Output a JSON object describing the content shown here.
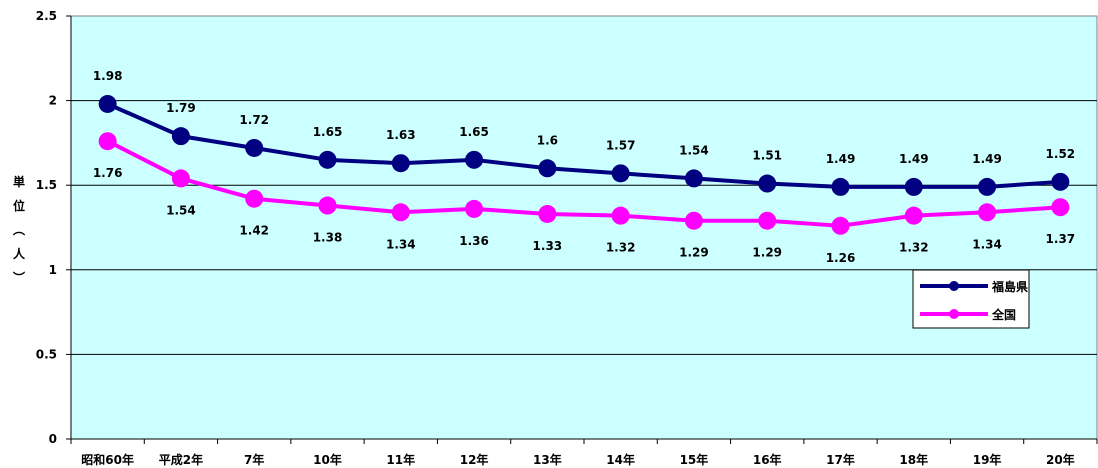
{
  "chart_data": {
    "type": "line",
    "title": "",
    "xlabel": "",
    "ylabel": [
      "単",
      "位",
      "︵",
      "人",
      "︶"
    ],
    "ylim": [
      0,
      2.5
    ],
    "yticks": [
      "0",
      "0.5",
      "1",
      "1.5",
      "2",
      "2.5"
    ],
    "categories": [
      "昭和60年",
      "平成2年",
      "7年",
      "10年",
      "11年",
      "12年",
      "13年",
      "14年",
      "15年",
      "16年",
      "17年",
      "18年",
      "19年",
      "20年"
    ],
    "series": [
      {
        "name": "福島県",
        "color": "#000080",
        "values": [
          1.98,
          1.79,
          1.72,
          1.65,
          1.63,
          1.65,
          1.6,
          1.57,
          1.54,
          1.51,
          1.49,
          1.49,
          1.49,
          1.52
        ],
        "labels": [
          "1.98",
          "1.79",
          "1.72",
          "1.65",
          "1.63",
          "1.65",
          "1.6",
          "1.57",
          "1.54",
          "1.51",
          "1.49",
          "1.49",
          "1.49",
          "1.52"
        ]
      },
      {
        "name": "全国",
        "color": "#ff00ff",
        "values": [
          1.76,
          1.54,
          1.42,
          1.38,
          1.34,
          1.36,
          1.33,
          1.32,
          1.29,
          1.29,
          1.26,
          1.32,
          1.34,
          1.37
        ],
        "labels": [
          "1.76",
          "1.54",
          "1.42",
          "1.38",
          "1.34",
          "1.36",
          "1.33",
          "1.32",
          "1.29",
          "1.29",
          "1.26",
          "1.32",
          "1.34",
          "1.37"
        ]
      }
    ],
    "grid": true,
    "legend": "right",
    "plot_background": "#ccffff"
  }
}
